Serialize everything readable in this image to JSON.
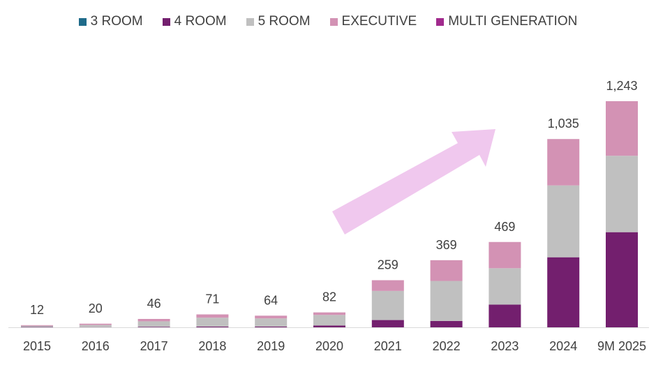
{
  "chart_data": {
    "type": "bar",
    "stacked": true,
    "categories": [
      "2015",
      "2016",
      "2017",
      "2018",
      "2019",
      "2020",
      "2021",
      "2022",
      "2023",
      "2024",
      "9M 2025"
    ],
    "series": [
      {
        "name": "3 ROOM",
        "color": "#1f6b8a",
        "values": [
          0,
          0,
          0,
          0,
          0,
          0,
          0,
          0,
          0,
          0,
          0
        ]
      },
      {
        "name": "4 ROOM",
        "color": "#731f6e",
        "values": [
          2,
          1,
          3,
          4,
          4,
          10,
          40,
          35,
          125,
          385,
          523
        ]
      },
      {
        "name": "5 ROOM",
        "color": "#c0c0c0",
        "values": [
          6,
          12,
          30,
          49,
          45,
          58,
          160,
          220,
          200,
          395,
          420
        ]
      },
      {
        "name": "EXECUTIVE",
        "color": "#d392b4",
        "values": [
          4,
          7,
          13,
          18,
          15,
          14,
          59,
          114,
          144,
          255,
          300
        ]
      },
      {
        "name": "MULTI GENERATION",
        "color": "#a12a8d",
        "values": [
          0,
          0,
          0,
          0,
          0,
          0,
          0,
          0,
          0,
          0,
          0
        ]
      }
    ],
    "totals": [
      "12",
      "20",
      "46",
      "71",
      "64",
      "82",
      "259",
      "369",
      "469",
      "1,035",
      "1,243"
    ],
    "ylim": [
      0,
      1243
    ],
    "legend_position": "top",
    "grid": false,
    "annotation": {
      "type": "arrow",
      "color": "#f0c8ee",
      "direction": "up-right"
    }
  }
}
